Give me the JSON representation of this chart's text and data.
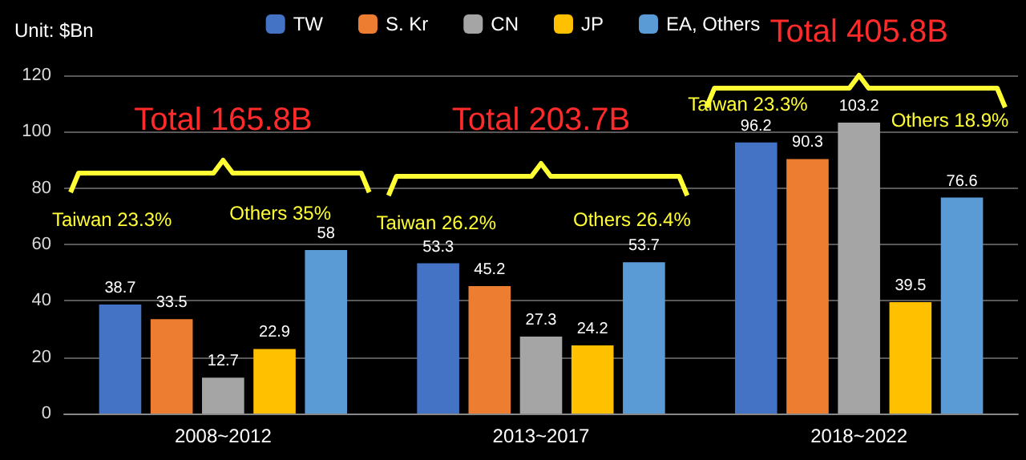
{
  "chart_data": {
    "type": "bar",
    "ylabel": "Unit: $Bn",
    "categories": [
      "2008~2012",
      "2013~2017",
      "2018~2022"
    ],
    "series": [
      {
        "name": "TW",
        "color": "#4472c4",
        "values": [
          38.7,
          53.3,
          96.2
        ]
      },
      {
        "name": "S. Kr",
        "color": "#ed7d31",
        "values": [
          33.5,
          45.2,
          90.3
        ]
      },
      {
        "name": "CN",
        "color": "#a5a5a5",
        "values": [
          12.7,
          27.3,
          103.2
        ]
      },
      {
        "name": "JP",
        "color": "#ffc000",
        "values": [
          22.9,
          24.2,
          39.5
        ]
      },
      {
        "name": "EA, Others",
        "color": "#5b9bd5",
        "values": [
          58,
          53.7,
          76.6
        ]
      }
    ],
    "ylim": [
      0,
      120
    ],
    "yticks": [
      0,
      20,
      40,
      60,
      80,
      100,
      120
    ],
    "grid": "y",
    "legend": "top",
    "data_labels": true,
    "annotations": [
      "Total 165.8B",
      "Taiwan 23.3%",
      "Others 35%",
      "Total 203.7B",
      "Taiwan 26.2%",
      "Others 26.4%",
      "Total 405.8B",
      "Taiwan 23.3%",
      "Others 18.9%"
    ]
  }
}
